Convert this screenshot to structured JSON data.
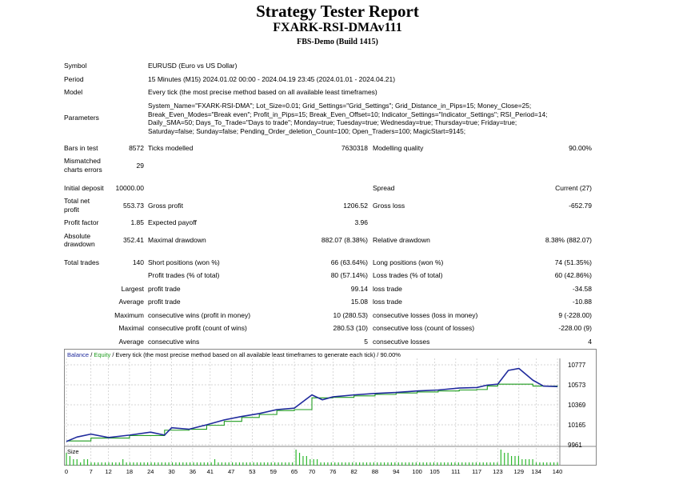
{
  "header": {
    "title": "Strategy Tester Report",
    "expert": "FXARK-RSI-DMAv111",
    "server": "FBS-Demo (Build 1415)"
  },
  "info": {
    "symbol_label": "Symbol",
    "symbol_value": "EURUSD (Euro vs US Dollar)",
    "period_label": "Period",
    "period_value": "15 Minutes (M15) 2024.01.02 00:00 - 2024.04.19 23:45 (2024.01.01 - 2024.04.21)",
    "model_label": "Model",
    "model_value": "Every tick (the most precise method based on all available least timeframes)",
    "parameters_label": "Parameters",
    "parameters_value": "System_Name=\"FXARK-RSI-DMA\"; Lot_Size=0.01; Grid_Settings=\"Grid_Settings\"; Grid_Distance_in_Pips=15; Money_Close=25; Break_Even_Modes=\"Break even\"; Profit_in_Pips=15; Break_Even_Offset=10; Indicator_Settings=\"Indicator_Settings\"; RSI_Period=14; Daily_SMA=50; Days_To_Trade=\"Days to trade\"; Monday=true; Tuesday=true; Wednesday=true; Thursday=true; Friday=true; Saturday=false; Sunday=false; Pending_Order_deletion_Count=100; Open_Traders=100; MagicStart=9145;"
  },
  "stats": {
    "bars_label": "Bars in test",
    "bars_value": "8572",
    "ticks_label": "Ticks modelled",
    "ticks_value": "7630318",
    "quality_label": "Modelling quality",
    "quality_value": "90.00%",
    "mismatch_label_1": "Mismatched",
    "mismatch_label_2": "charts errors",
    "mismatch_value": "29",
    "deposit_label": "Initial deposit",
    "deposit_value": "10000.00",
    "spread_label": "Spread",
    "spread_value": "Current (27)",
    "net_label_1": "Total net",
    "net_label_2": "profit",
    "net_value": "553.73",
    "gross_profit_label": "Gross profit",
    "gross_profit_value": "1206.52",
    "gross_loss_label": "Gross loss",
    "gross_loss_value": "-652.79",
    "pf_label": "Profit factor",
    "pf_value": "1.85",
    "payoff_label": "Expected payoff",
    "payoff_value": "3.96",
    "abs_dd_label_1": "Absolute",
    "abs_dd_label_2": "drawdown",
    "abs_dd_value": "352.41",
    "max_dd_label": "Maximal drawdown",
    "max_dd_value": "882.07 (8.38%)",
    "rel_dd_label": "Relative drawdown",
    "rel_dd_value": "8.38% (882.07)",
    "trades_label": "Total trades",
    "trades_value": "140",
    "short_label": "Short positions (won %)",
    "short_value": "66 (63.64%)",
    "long_label": "Long positions (won %)",
    "long_value": "74 (51.35%)",
    "profit_trades_label": "Profit trades (% of total)",
    "profit_trades_value": "80 (57.14%)",
    "loss_trades_label": "Loss trades (% of total)",
    "loss_trades_value": "60 (42.86%)",
    "largest_label": "Largest",
    "largest_profit_label": "profit trade",
    "largest_profit_value": "99.14",
    "largest_loss_label": "loss trade",
    "largest_loss_value": "-34.58",
    "average_label": "Average",
    "average_profit_label": "profit trade",
    "average_profit_value": "15.08",
    "average_loss_label": "loss trade",
    "average_loss_value": "-10.88",
    "maximum_label": "Maximum",
    "max_cons_wins_label": "consecutive wins (profit in money)",
    "max_cons_wins_value": "10 (280.53)",
    "max_cons_losses_label": "consecutive losses (loss in money)",
    "max_cons_losses_value": "9 (-228.00)",
    "maximal_label": "Maximal",
    "maximal_profit_label": "consecutive profit (count of wins)",
    "maximal_profit_value": "280.53 (10)",
    "maximal_loss_label": "consecutive loss (count of losses)",
    "maximal_loss_value": "-228.00 (9)",
    "average2_label": "Average",
    "avg_cons_wins_label": "consecutive wins",
    "avg_cons_wins_value": "5",
    "avg_cons_losses_label": "consecutive losses",
    "avg_cons_losses_value": "4"
  },
  "legend": {
    "balance": "Balance",
    "sep": " / ",
    "equity": "Equity",
    "rest": " / Every tick (the most precise method based on all available least timeframes to generate each tick) / 90.00%"
  },
  "colors": {
    "balance": "#1f2a9c",
    "equity": "#1f9c1f",
    "size": "#2eb82e",
    "grid": "#c8c8c8"
  },
  "chart_data": {
    "type": "line",
    "series": [
      {
        "name": "Balance",
        "x": [
          0,
          3,
          7,
          12,
          18,
          24,
          28,
          30,
          35,
          40,
          45,
          50,
          55,
          60,
          65,
          70,
          76,
          82,
          88,
          94,
          100,
          106,
          112,
          117,
          120,
          123,
          129,
          133,
          140
        ],
        "values": [
          10000,
          10000,
          10030,
          10030,
          10055,
          10055,
          10110,
          10110,
          10120,
          10160,
          10200,
          10240,
          10270,
          10310,
          10320,
          10440,
          10445,
          10460,
          10475,
          10490,
          10500,
          10510,
          10520,
          10525,
          10560,
          10580,
          10580,
          10560,
          10555
        ]
      },
      {
        "name": "Equity",
        "x": [
          0,
          3,
          7,
          12,
          18,
          24,
          28,
          30,
          35,
          40,
          45,
          50,
          55,
          60,
          65,
          70,
          73,
          76,
          82,
          88,
          94,
          100,
          106,
          112,
          117,
          120,
          123,
          126,
          129,
          133,
          136,
          140
        ],
        "values": [
          9995,
          10040,
          10070,
          10035,
          10060,
          10090,
          10060,
          10135,
          10120,
          10165,
          10215,
          10250,
          10280,
          10320,
          10335,
          10470,
          10420,
          10450,
          10470,
          10485,
          10495,
          10510,
          10520,
          10540,
          10545,
          10570,
          10580,
          10720,
          10740,
          10620,
          10560,
          10555
        ]
      }
    ],
    "xlabel": "",
    "ylabel": "",
    "ylim": [
      9961,
      10777
    ],
    "xlim": [
      0,
      140
    ],
    "yticks": [
      "10777",
      "10573",
      "10369",
      "10165",
      "9961"
    ],
    "ytick_values": [
      10777,
      10573,
      10369,
      10165,
      9961
    ],
    "xticks": [
      "0",
      "7",
      "12",
      "18",
      "24",
      "30",
      "36",
      "41",
      "47",
      "53",
      "59",
      "65",
      "70",
      "76",
      "82",
      "88",
      "94",
      "100",
      "105",
      "111",
      "117",
      "123",
      "129",
      "134",
      "140"
    ],
    "size_label": "Size",
    "size_bars": [
      4,
      3,
      2,
      2,
      1,
      2,
      2,
      1,
      1,
      1,
      1,
      1,
      1,
      1,
      1,
      1,
      2,
      1,
      1,
      1,
      1,
      1,
      1,
      1,
      1,
      1,
      1,
      1,
      1,
      1,
      1,
      1,
      1,
      1,
      1,
      1,
      1,
      1,
      1,
      1,
      1,
      1,
      2,
      1,
      1,
      1,
      1,
      1,
      1,
      1,
      1,
      1,
      1,
      1,
      1,
      1,
      1,
      1,
      1,
      1,
      1,
      1,
      1,
      1,
      1,
      5,
      4,
      3,
      3,
      2,
      2,
      2,
      1,
      1,
      1,
      1,
      1,
      1,
      1,
      1,
      1,
      1,
      1,
      1,
      1,
      1,
      1,
      1,
      1,
      1,
      1,
      1,
      1,
      1,
      1,
      1,
      1,
      1,
      1,
      1,
      1,
      1,
      1,
      1,
      1,
      1,
      1,
      1,
      1,
      1,
      1,
      1,
      1,
      1,
      1,
      1,
      1,
      1,
      1,
      1,
      1,
      1,
      1,
      5,
      4,
      4,
      3,
      3,
      3,
      2,
      2,
      2,
      2,
      1,
      1,
      1,
      1,
      1,
      1,
      1
    ],
    "grid": true
  }
}
